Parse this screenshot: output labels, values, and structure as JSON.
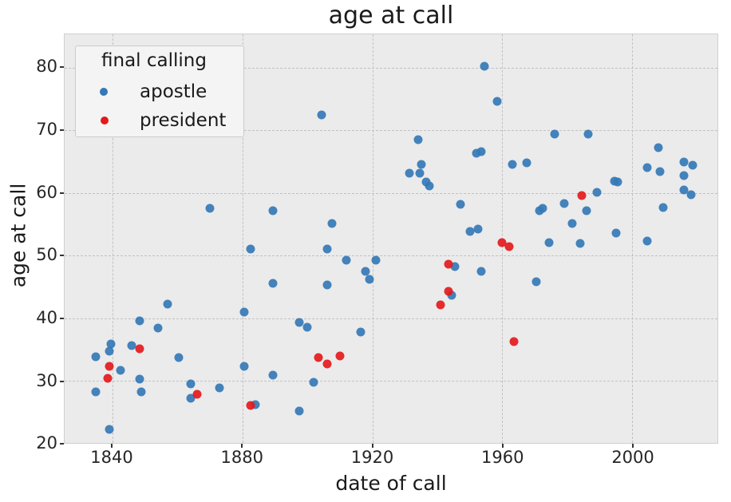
{
  "chart_data": {
    "type": "scatter",
    "title": "age at call",
    "xlabel": "date of call",
    "ylabel": "age at call",
    "xlim": [
      1825.3,
      2026.2
    ],
    "ylim": [
      20.05,
      85.35
    ],
    "xticks": [
      1840,
      1880,
      1920,
      1960,
      2000
    ],
    "yticks": [
      20,
      30,
      40,
      50,
      60,
      70,
      80
    ],
    "grid": "dashed, both axes",
    "legend": {
      "title": "final calling",
      "position": "upper left",
      "entries": [
        {
          "label": "apostle",
          "color": "#3478b6"
        },
        {
          "label": "president",
          "color": "#e31a1c"
        }
      ]
    },
    "series": [
      {
        "name": "apostle",
        "color": "#3478b6",
        "points": [
          [
            1835,
            33.8
          ],
          [
            1835,
            28.2
          ],
          [
            1839.5,
            35.9
          ],
          [
            1839,
            34.7
          ],
          [
            1839,
            22.2
          ],
          [
            1842.5,
            31.6
          ],
          [
            1846,
            35.6
          ],
          [
            1848.5,
            39.6
          ],
          [
            1848.5,
            30.3
          ],
          [
            1849,
            28.2
          ],
          [
            1854,
            38.4
          ],
          [
            1857,
            42.3
          ],
          [
            1860.5,
            33.7
          ],
          [
            1864,
            29.5
          ],
          [
            1864,
            27.2
          ],
          [
            1873,
            28.8
          ],
          [
            1870,
            57.5
          ],
          [
            1880.5,
            41.0
          ],
          [
            1880.5,
            32.3
          ],
          [
            1882.5,
            51.0
          ],
          [
            1884,
            26.2
          ],
          [
            1889.5,
            45.5
          ],
          [
            1889.5,
            57.2
          ],
          [
            1889.5,
            30.9
          ],
          [
            1897.5,
            39.3
          ],
          [
            1900,
            38.5
          ],
          [
            1897.5,
            25.1
          ],
          [
            1902,
            29.8
          ],
          [
            1904.5,
            72.5
          ],
          [
            1906,
            51.0
          ],
          [
            1906,
            45.3
          ],
          [
            1907.5,
            55.1
          ],
          [
            1912,
            49.3
          ],
          [
            1916.5,
            37.8
          ],
          [
            1918,
            47.5
          ],
          [
            1919,
            46.2
          ],
          [
            1921,
            49.3
          ],
          [
            1931.5,
            63.1
          ],
          [
            1934,
            68.5
          ],
          [
            1934.5,
            63.1
          ],
          [
            1935,
            64.6
          ],
          [
            1936.5,
            61.7
          ],
          [
            1937.5,
            61.1
          ],
          [
            1945.5,
            48.2
          ],
          [
            1944.5,
            43.6
          ],
          [
            1947,
            58.2
          ],
          [
            1950,
            53.9
          ],
          [
            1952.5,
            54.2
          ],
          [
            1952,
            66.3
          ],
          [
            1953.5,
            66.6
          ],
          [
            1954.5,
            80.2
          ],
          [
            1953.5,
            47.5
          ],
          [
            1958.5,
            74.6
          ],
          [
            1963,
            64.5
          ],
          [
            1967.5,
            64.8
          ],
          [
            1970.5,
            45.8
          ],
          [
            1971.5,
            57.2
          ],
          [
            1972.5,
            57.6
          ],
          [
            1974.5,
            52.0
          ],
          [
            1976,
            69.4
          ],
          [
            1979,
            58.3
          ],
          [
            1981.5,
            55.1
          ],
          [
            1984,
            51.9
          ],
          [
            1986,
            57.2
          ],
          [
            1986.5,
            69.4
          ],
          [
            1989,
            60.1
          ],
          [
            1994.5,
            61.9
          ],
          [
            1995.5,
            61.7
          ],
          [
            1995,
            53.6
          ],
          [
            2004.5,
            64.0
          ],
          [
            2004.5,
            52.3
          ],
          [
            2008,
            67.2
          ],
          [
            2008.5,
            63.4
          ],
          [
            2009.5,
            57.7
          ],
          [
            2016,
            64.9
          ],
          [
            2018.5,
            64.4
          ],
          [
            2016,
            62.8
          ],
          [
            2016,
            60.5
          ],
          [
            2018,
            59.7
          ]
        ]
      },
      {
        "name": "president",
        "color": "#e31a1c",
        "points": [
          [
            1839,
            32.3
          ],
          [
            1838.5,
            30.4
          ],
          [
            1848.5,
            35.1
          ],
          [
            1866,
            27.8
          ],
          [
            1882.5,
            26.1
          ],
          [
            1903.5,
            33.7
          ],
          [
            1906,
            32.7
          ],
          [
            1910,
            33.9
          ],
          [
            1941,
            42.1
          ],
          [
            1943.5,
            48.6
          ],
          [
            1943.5,
            44.3
          ],
          [
            1960,
            52.1
          ],
          [
            1962,
            51.4
          ],
          [
            1963.5,
            36.3
          ],
          [
            1984.5,
            59.6
          ]
        ]
      }
    ]
  }
}
